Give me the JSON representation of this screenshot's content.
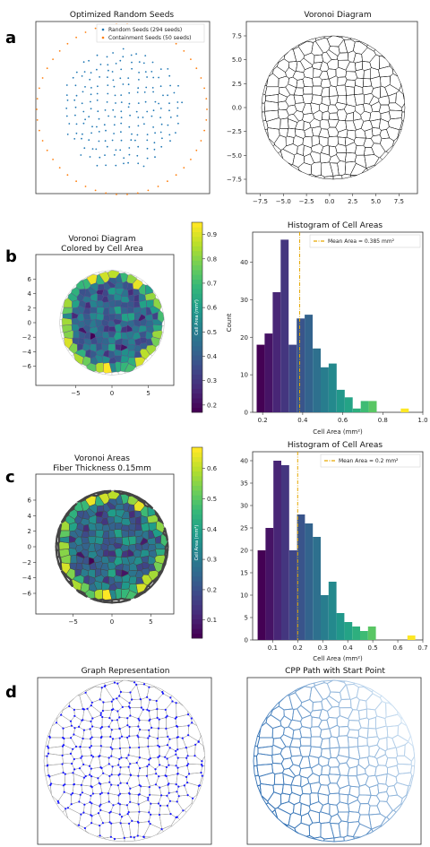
{
  "panel_labels": [
    "a",
    "b",
    "c",
    "d"
  ],
  "colors": {
    "random_seed": "#1f77b4",
    "containment_seed": "#ff7f0e",
    "mean_line": "#e6a800",
    "graph_node": "#1a1aff",
    "graph_edge": "#9a9a9a",
    "cpp_path": "#2f6fb3"
  },
  "viridis": [
    "#440154",
    "#482878",
    "#3e4989",
    "#31688e",
    "#26828e",
    "#1f9e89",
    "#35b779",
    "#6ece58",
    "#b5de2b",
    "#fde725"
  ],
  "chart_data": [
    {
      "id": "seeds",
      "type": "scatter",
      "title": "Optimized Random Seeds",
      "series": [
        {
          "name": "Random Seeds (294 seeds)",
          "count": 294
        },
        {
          "name": "Containment Seeds (50 seeds)",
          "count": 50
        }
      ],
      "legend_position": "top-right"
    },
    {
      "id": "voronoi",
      "type": "diagram",
      "title": "Voronoi Diagram",
      "xlim": [
        -9,
        9.5
      ],
      "ylim": [
        -9,
        9
      ],
      "xticks": [
        -7.5,
        -5.0,
        -2.5,
        0.0,
        2.5,
        5.0,
        7.5
      ],
      "yticks": [
        7.5,
        5.0,
        2.5,
        0.0,
        -2.5,
        -5.0,
        -7.5
      ],
      "xtick_labels": [
        "−7.5",
        "−5.0",
        "−2.5",
        "0.0",
        "2.5",
        "5.0",
        "7.5"
      ],
      "ytick_labels": [
        "7.5",
        "5.0",
        "2.5",
        "0.0",
        "−2.5",
        "−5.0",
        "−7.5"
      ]
    },
    {
      "id": "colored_b",
      "type": "heatmap",
      "title": "Voronoi Diagram",
      "subtitle": "Colored by Cell Area",
      "xticks": [
        -5,
        0,
        5
      ],
      "xtick_labels": [
        "−5",
        "0",
        "5"
      ],
      "yticks": [
        6,
        4,
        2,
        0,
        -2,
        -4,
        -6
      ],
      "ytick_labels": [
        "6",
        "4",
        "2",
        "0",
        "−2",
        "−4",
        "−6"
      ],
      "colorbar_label": "Cell Area (mm²)",
      "colorbar_range": [
        0.17,
        0.95
      ],
      "colorbar_ticks": [
        0.9,
        0.8,
        0.7,
        0.6,
        0.5,
        0.4,
        0.3,
        0.2
      ],
      "colorbar_tick_labels": [
        "0.9",
        "0.8",
        "0.7",
        "0.6",
        "0.5",
        "0.4",
        "0.3",
        "0.2"
      ]
    },
    {
      "id": "hist_b",
      "type": "bar",
      "title": "Histogram of Cell Areas",
      "xlabel": "Cell Area (mm²)",
      "ylabel": "Count",
      "bin_edges": [
        0.17,
        0.21,
        0.25,
        0.29,
        0.33,
        0.37,
        0.41,
        0.45,
        0.49,
        0.53,
        0.57,
        0.61,
        0.65,
        0.69,
        0.73,
        0.77,
        0.81,
        0.85,
        0.89,
        0.93,
        0.97
      ],
      "values": [
        18,
        21,
        32,
        46,
        18,
        25,
        26,
        17,
        12,
        13,
        6,
        4,
        1,
        3,
        3,
        0,
        0,
        0,
        1,
        0
      ],
      "xlim": [
        0.15,
        1.0
      ],
      "ylim": [
        0,
        48
      ],
      "xticks": [
        0.2,
        0.4,
        0.6,
        0.8,
        1.0
      ],
      "xtick_labels": [
        "0.2",
        "0.4",
        "0.6",
        "0.8",
        "1.0"
      ],
      "yticks": [
        0,
        10,
        20,
        30,
        40
      ],
      "ytick_labels": [
        "0",
        "10",
        "20",
        "30",
        "40"
      ],
      "mean": 0.385,
      "legend": "Mean Area = 0.385 mm²",
      "legend_position": "top-right"
    },
    {
      "id": "colored_c",
      "type": "heatmap",
      "title": "Voronoi Areas",
      "subtitle": "Fiber Thickness 0.15mm",
      "xticks": [
        -5,
        0,
        5
      ],
      "xtick_labels": [
        "−5",
        "0",
        "5"
      ],
      "yticks": [
        6,
        4,
        2,
        0,
        -2,
        -4,
        -6
      ],
      "ytick_labels": [
        "6",
        "4",
        "2",
        "0",
        "−2",
        "−4",
        "−6"
      ],
      "colorbar_label": "Cell Area (mm²)",
      "colorbar_range": [
        0.04,
        0.67
      ],
      "colorbar_ticks": [
        0.6,
        0.5,
        0.4,
        0.3,
        0.2,
        0.1
      ],
      "colorbar_tick_labels": [
        "0.6",
        "0.5",
        "0.4",
        "0.3",
        "0.2",
        "0.1"
      ]
    },
    {
      "id": "hist_c",
      "type": "bar",
      "title": "Histogram of Cell Areas",
      "xlabel": "Cell Area (mm²)",
      "ylabel": "",
      "bin_edges": [
        0.04,
        0.0715,
        0.103,
        0.1345,
        0.166,
        0.1975,
        0.229,
        0.2605,
        0.292,
        0.3235,
        0.355,
        0.3865,
        0.418,
        0.4495,
        0.481,
        0.5125,
        0.544,
        0.5755,
        0.607,
        0.6385,
        0.67
      ],
      "values": [
        20,
        25,
        40,
        39,
        20,
        28,
        26,
        23,
        10,
        13,
        6,
        4,
        3,
        2,
        3,
        0,
        0,
        0,
        0,
        1
      ],
      "xlim": [
        0.02,
        0.7
      ],
      "ylim": [
        0,
        42
      ],
      "xticks": [
        0.1,
        0.2,
        0.3,
        0.4,
        0.5,
        0.6,
        0.7
      ],
      "xtick_labels": [
        "0.1",
        "0.2",
        "0.3",
        "0.4",
        "0.5",
        "0.6",
        "0.7"
      ],
      "yticks": [
        0,
        5,
        10,
        15,
        20,
        25,
        30,
        35,
        40
      ],
      "ytick_labels": [
        "0",
        "5",
        "10",
        "15",
        "20",
        "25",
        "30",
        "35",
        "40"
      ],
      "mean": 0.2,
      "legend": "Mean Area = 0.2 mm²",
      "legend_position": "top-right"
    },
    {
      "id": "graph",
      "type": "diagram",
      "title": "Graph Representation"
    },
    {
      "id": "cpp",
      "type": "diagram",
      "title": "CPP Path with Start Point"
    }
  ]
}
